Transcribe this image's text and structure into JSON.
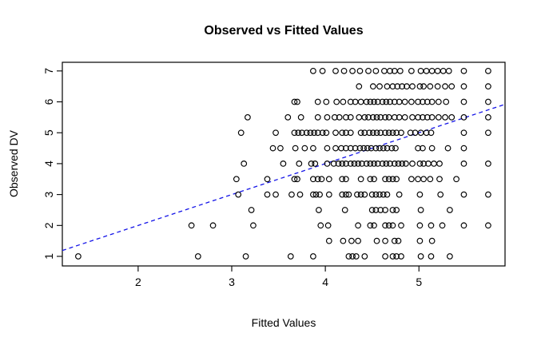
{
  "figure": {
    "title": "Observed vs Fitted Values",
    "background_color": "#ffffff"
  },
  "chart_data": {
    "type": "scatter",
    "title": "Observed vs Fitted Values",
    "xlabel": "Fitted Values",
    "ylabel": "Observed DV",
    "xlim": [
      1.19,
      5.92
    ],
    "ylim": [
      0.69,
      7.28
    ],
    "x_ticks": [
      2,
      3,
      4,
      5
    ],
    "y_ticks": [
      1,
      2,
      3,
      4,
      5,
      6,
      7
    ],
    "grid": false,
    "frame_color": "#000000",
    "point_color": "#000000",
    "marker": "open-circle",
    "reference_line": {
      "style": "dashed",
      "color": "#1414E8",
      "slope": 1,
      "intercept": 0,
      "meaning": "identity line y = x"
    },
    "series": [
      {
        "y": 7,
        "x": [
          3.87,
          3.97,
          4.11,
          4.2,
          4.29,
          4.37,
          4.46,
          4.54,
          4.63,
          4.69,
          4.74,
          4.8,
          4.92,
          5.02,
          5.08,
          5.14,
          5.2,
          5.26,
          5.32,
          5.48,
          5.74
        ]
      },
      {
        "y": 6.5,
        "x": [
          4.36,
          4.51,
          4.58,
          4.66,
          4.72,
          4.77,
          4.82,
          4.87,
          4.93,
          5.01,
          5.05,
          5.12,
          5.2,
          5.28,
          5.35,
          5.48,
          5.74
        ]
      },
      {
        "y": 6,
        "x": [
          3.67,
          3.7,
          3.92,
          4.01,
          4.12,
          4.19,
          4.27,
          4.32,
          4.38,
          4.44,
          4.48,
          4.52,
          4.56,
          4.61,
          4.65,
          4.69,
          4.74,
          4.79,
          4.85,
          4.92,
          4.99,
          5.04,
          5.09,
          5.14,
          5.21,
          5.29,
          5.48,
          5.74
        ]
      },
      {
        "y": 5.5,
        "x": [
          3.17,
          3.6,
          3.74,
          3.92,
          4.02,
          4.1,
          4.15,
          4.22,
          4.27,
          4.36,
          4.42,
          4.46,
          4.51,
          4.55,
          4.59,
          4.64,
          4.68,
          4.74,
          4.79,
          4.85,
          4.93,
          4.99,
          5.04,
          5.09,
          5.14,
          5.21,
          5.28,
          5.35,
          5.48,
          5.74
        ]
      },
      {
        "y": 5,
        "x": [
          3.1,
          3.47,
          3.67,
          3.71,
          3.75,
          3.8,
          3.84,
          3.88,
          3.92,
          3.97,
          4.01,
          4.11,
          4.18,
          4.22,
          4.27,
          4.38,
          4.42,
          4.47,
          4.51,
          4.55,
          4.59,
          4.64,
          4.68,
          4.72,
          4.76,
          4.81,
          4.91,
          4.96,
          5.02,
          5.08,
          5.13,
          5.48,
          5.74
        ]
      },
      {
        "y": 4.5,
        "x": [
          3.44,
          3.52,
          3.68,
          3.78,
          3.87,
          4.02,
          4.11,
          4.17,
          4.22,
          4.27,
          4.32,
          4.37,
          4.41,
          4.45,
          4.49,
          4.54,
          4.58,
          4.62,
          4.66,
          4.71,
          4.75,
          4.99,
          5.04,
          5.14,
          5.31,
          5.48
        ]
      },
      {
        "y": 4,
        "x": [
          3.13,
          3.55,
          3.72,
          3.85,
          3.89,
          4.02,
          4.09,
          4.14,
          4.18,
          4.22,
          4.27,
          4.31,
          4.35,
          4.39,
          4.44,
          4.48,
          4.52,
          4.56,
          4.61,
          4.65,
          4.69,
          4.74,
          4.78,
          4.82,
          4.86,
          4.93,
          5.01,
          5.05,
          5.1,
          5.16,
          5.22,
          5.48,
          5.74
        ]
      },
      {
        "y": 3.5,
        "x": [
          3.05,
          3.38,
          3.67,
          3.7,
          3.87,
          3.92,
          3.96,
          4.04,
          4.18,
          4.22,
          4.38,
          4.48,
          4.52,
          4.64,
          4.68,
          4.72,
          4.76,
          4.92,
          4.99,
          5.05,
          5.12,
          5.22,
          5.4
        ]
      },
      {
        "y": 3,
        "x": [
          3.07,
          3.38,
          3.47,
          3.64,
          3.73,
          3.87,
          3.9,
          3.94,
          4.04,
          4.18,
          4.22,
          4.25,
          4.34,
          4.38,
          4.42,
          4.5,
          4.54,
          4.58,
          4.62,
          4.66,
          4.79,
          5.01,
          5.23,
          5.48,
          5.74
        ]
      },
      {
        "y": 2.5,
        "x": [
          3.21,
          3.93,
          4.21,
          4.5,
          4.54,
          4.59,
          4.64,
          4.72,
          4.76,
          5.02,
          5.33
        ]
      },
      {
        "y": 2,
        "x": [
          2.57,
          2.8,
          3.23,
          3.95,
          4.03,
          4.35,
          4.48,
          4.52,
          4.64,
          4.68,
          4.72,
          4.81,
          5.01,
          5.13,
          5.25,
          5.48,
          5.74
        ]
      },
      {
        "y": 1.5,
        "x": [
          4.04,
          4.19,
          4.28,
          4.35,
          4.55,
          4.64,
          4.74,
          4.78,
          5.01,
          5.14
        ]
      },
      {
        "y": 1,
        "x": [
          1.36,
          2.64,
          3.15,
          3.63,
          3.87,
          4.25,
          4.29,
          4.33,
          4.42,
          4.64,
          4.72,
          4.76,
          4.81,
          5.02,
          5.13,
          5.33
        ]
      }
    ]
  }
}
